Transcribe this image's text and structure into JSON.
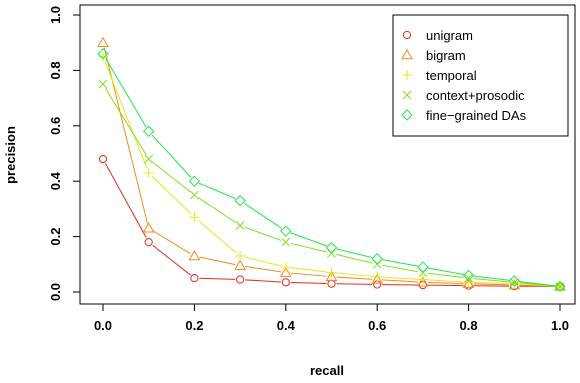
{
  "chart_data": {
    "type": "line",
    "title": "",
    "xlabel": "recall",
    "ylabel": "precision",
    "xlim": [
      0.0,
      1.0
    ],
    "ylim": [
      0.0,
      1.0
    ],
    "x_ticks": [
      "0.0",
      "0.2",
      "0.4",
      "0.6",
      "0.8",
      "1.0"
    ],
    "y_ticks": [
      "0.0",
      "0.2",
      "0.4",
      "0.6",
      "0.8",
      "1.0"
    ],
    "grid": false,
    "legend_position": "top-right",
    "x": [
      0.0,
      0.1,
      0.2,
      0.3,
      0.4,
      0.5,
      0.6,
      0.7,
      0.8,
      0.9,
      1.0
    ],
    "series": [
      {
        "name": "unigram",
        "marker": "circle",
        "color": "#e8291c",
        "values": [
          0.48,
          0.18,
          0.05,
          0.045,
          0.035,
          0.03,
          0.027,
          0.025,
          0.023,
          0.021,
          0.02
        ]
      },
      {
        "name": "bigram",
        "marker": "triangle",
        "color": "#f28a1b",
        "values": [
          0.9,
          0.23,
          0.13,
          0.095,
          0.07,
          0.055,
          0.045,
          0.035,
          0.03,
          0.025,
          0.02
        ]
      },
      {
        "name": "temporal",
        "marker": "plus",
        "color": "#e3e819",
        "values": [
          0.85,
          0.43,
          0.27,
          0.13,
          0.09,
          0.07,
          0.055,
          0.045,
          0.035,
          0.03,
          0.02
        ]
      },
      {
        "name": "context+prosodic",
        "marker": "cross",
        "color": "#7fe11a",
        "values": [
          0.75,
          0.48,
          0.35,
          0.24,
          0.18,
          0.14,
          0.1,
          0.07,
          0.05,
          0.035,
          0.02
        ]
      },
      {
        "name": "fine−grained DAs",
        "marker": "diamond",
        "color": "#1ee84c",
        "values": [
          0.86,
          0.58,
          0.4,
          0.33,
          0.22,
          0.16,
          0.12,
          0.09,
          0.06,
          0.04,
          0.02
        ]
      }
    ]
  }
}
